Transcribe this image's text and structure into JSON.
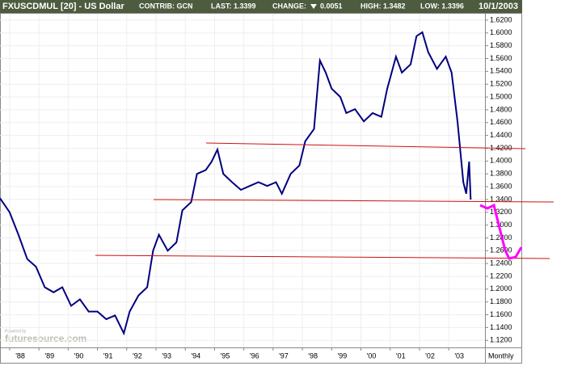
{
  "chart_data": {
    "type": "line",
    "title": "FXUSCDMUL [20] - US Dollar",
    "annotations": [
      "CONTRIB: GCN",
      "LAST: 1.3399",
      "CHANGE:",
      "0.0051",
      "HIGH: 1.3482",
      "LOW: 1.3396",
      "10/1/2003"
    ],
    "watermark": "futuresource.com",
    "watermark_small": "Powered by",
    "x_label": "Monthly",
    "x": [
      1987.67,
      1988.0,
      1988.3,
      1988.6,
      1988.9,
      1989.2,
      1989.5,
      1989.8,
      1990.1,
      1990.4,
      1990.7,
      1991.0,
      1991.3,
      1991.6,
      1991.9,
      1992.1,
      1992.4,
      1992.7,
      1992.9,
      1993.1,
      1993.4,
      1993.7,
      1993.9,
      1994.2,
      1994.4,
      1994.7,
      1994.9,
      1995.1,
      1995.3,
      1995.6,
      1995.9,
      1996.2,
      1996.5,
      1996.8,
      1997.1,
      1997.3,
      1997.6,
      1997.9,
      1998.1,
      1998.4,
      1998.6,
      1998.8,
      1999.0,
      1999.3,
      1999.5,
      1999.8,
      2000.1,
      2000.4,
      2000.7,
      2000.9,
      2001.2,
      2001.4,
      2001.7,
      2001.9,
      2002.1,
      2002.3,
      2002.6,
      2002.9,
      2003.1,
      2003.3,
      2003.5,
      2003.6,
      2003.7,
      2003.75
    ],
    "series": [
      {
        "name": "FXUSCDMUL",
        "color": "#000080",
        "values": [
          1.342,
          1.32,
          1.285,
          1.247,
          1.235,
          1.203,
          1.195,
          1.203,
          1.174,
          1.184,
          1.165,
          1.165,
          1.153,
          1.159,
          1.131,
          1.165,
          1.19,
          1.203,
          1.26,
          1.285,
          1.26,
          1.273,
          1.323,
          1.336,
          1.38,
          1.386,
          1.399,
          1.418,
          1.38,
          1.367,
          1.355,
          1.361,
          1.367,
          1.361,
          1.367,
          1.349,
          1.38,
          1.393,
          1.431,
          1.45,
          1.557,
          1.538,
          1.513,
          1.5,
          1.475,
          1.481,
          1.462,
          1.475,
          1.469,
          1.513,
          1.563,
          1.538,
          1.551,
          1.595,
          1.601,
          1.57,
          1.544,
          1.563,
          1.538,
          1.462,
          1.367,
          1.349,
          1.399,
          1.3399
        ]
      }
    ],
    "xlim": [
      1987.67,
      2004.24
    ],
    "xticks": [
      {
        "value": 1988,
        "label": "'88"
      },
      {
        "value": 1989,
        "label": "'89"
      },
      {
        "value": 1990,
        "label": "'90"
      },
      {
        "value": 1991,
        "label": "'91"
      },
      {
        "value": 1992,
        "label": "'92"
      },
      {
        "value": 1993,
        "label": "'93"
      },
      {
        "value": 1994,
        "label": "'94"
      },
      {
        "value": 1995,
        "label": "'95"
      },
      {
        "value": 1996,
        "label": "'96"
      },
      {
        "value": 1997,
        "label": "'97"
      },
      {
        "value": 1998,
        "label": "'98"
      },
      {
        "value": 1999,
        "label": "'99"
      },
      {
        "value": 2000,
        "label": "'00"
      },
      {
        "value": 2001,
        "label": "'01"
      },
      {
        "value": 2002,
        "label": "'02"
      },
      {
        "value": 2003,
        "label": "'03"
      }
    ],
    "ylim": [
      1.109,
      1.63
    ],
    "yticks": [
      {
        "value": 1.12,
        "label": "1.1200"
      },
      {
        "value": 1.14,
        "label": "1.1400"
      },
      {
        "value": 1.16,
        "label": "1.1600"
      },
      {
        "value": 1.18,
        "label": "1.1800"
      },
      {
        "value": 1.2,
        "label": "1.2000"
      },
      {
        "value": 1.22,
        "label": "1.2200"
      },
      {
        "value": 1.24,
        "label": "1.2400"
      },
      {
        "value": 1.26,
        "label": "1.2600"
      },
      {
        "value": 1.28,
        "label": "1.2800"
      },
      {
        "value": 1.3,
        "label": "1.3000"
      },
      {
        "value": 1.32,
        "label": "1.3200"
      },
      {
        "value": 1.34,
        "label": "1.3400"
      },
      {
        "value": 1.36,
        "label": "1.3600"
      },
      {
        "value": 1.38,
        "label": "1.3800"
      },
      {
        "value": 1.4,
        "label": "1.4000"
      },
      {
        "value": 1.42,
        "label": "1.4200"
      },
      {
        "value": 1.44,
        "label": "1.4400"
      },
      {
        "value": 1.46,
        "label": "1.4600"
      },
      {
        "value": 1.48,
        "label": "1.4800"
      },
      {
        "value": 1.5,
        "label": "1.5000"
      },
      {
        "value": 1.52,
        "label": "1.5200"
      },
      {
        "value": 1.54,
        "label": "1.5400"
      },
      {
        "value": 1.56,
        "label": "1.5600"
      },
      {
        "value": 1.58,
        "label": "1.5800"
      },
      {
        "value": 1.6,
        "label": "1.6000"
      },
      {
        "value": 1.62,
        "label": "1.6200"
      }
    ],
    "grid": true
  }
}
